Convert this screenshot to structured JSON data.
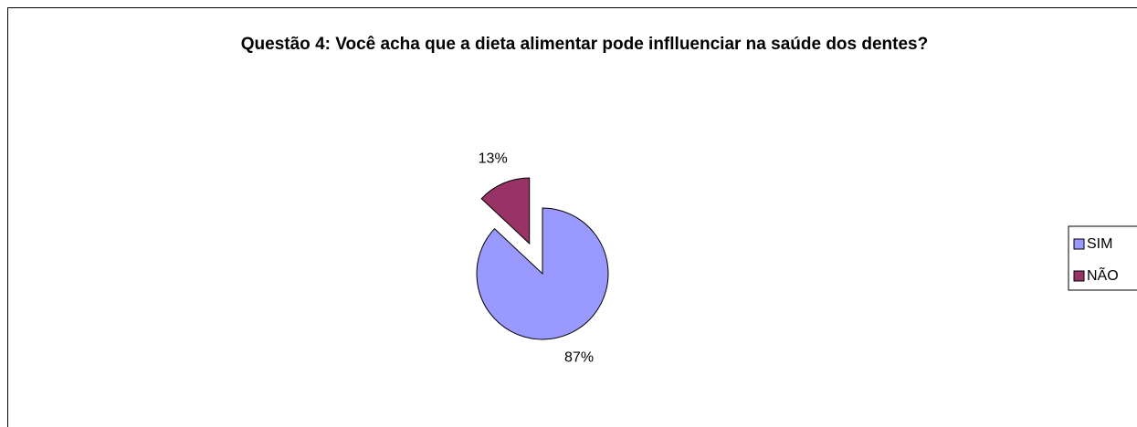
{
  "chart_data": {
    "type": "pie",
    "title": "Questão 4: Você acha que a dieta alimentar pode inflluenciar na saúde dos dentes?",
    "categories": [
      "SIM",
      "NÃO"
    ],
    "values": [
      87,
      13
    ],
    "value_labels": [
      "87%",
      "13%"
    ],
    "colors": [
      "#9999ff",
      "#993366"
    ],
    "legend": "right"
  }
}
